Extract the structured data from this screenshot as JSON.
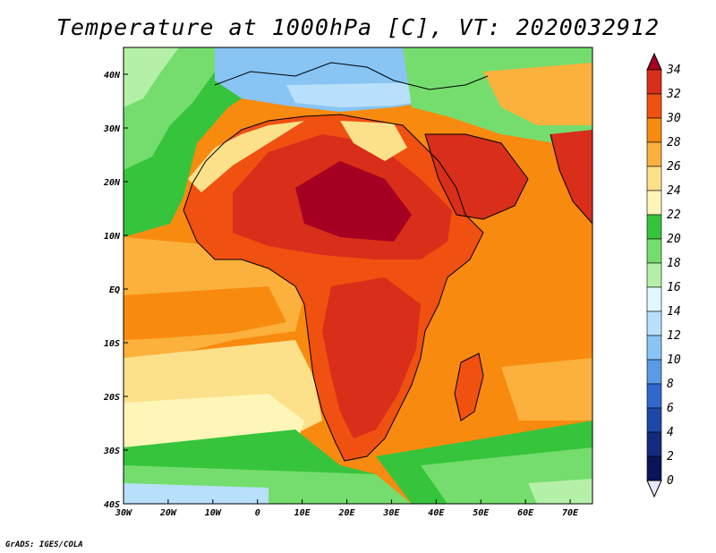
{
  "title": "Temperature at 1000hPa [C], VT: 2020032912",
  "credit": "GrADS: IGES/COLA",
  "map": {
    "variable": "Temperature at 1000hPa",
    "units": "C",
    "valid_time": "2020032912",
    "lon_range": [
      -30,
      75
    ],
    "lat_range": [
      -40,
      45
    ],
    "lon_ticks": [
      "30W",
      "20W",
      "10W",
      "0",
      "10E",
      "20E",
      "30E",
      "40E",
      "50E",
      "60E",
      "70E"
    ],
    "lat_ticks": [
      "40N",
      "30N",
      "20N",
      "10N",
      "EQ",
      "10S",
      "20S",
      "30S",
      "40S"
    ]
  },
  "colorbar": {
    "levels": [
      "34",
      "32",
      "30",
      "28",
      "26",
      "24",
      "22",
      "20",
      "18",
      "16",
      "14",
      "12",
      "10",
      "8",
      "6",
      "4",
      "2",
      "0"
    ],
    "colors": [
      "#a50021",
      "#d82e1a",
      "#f05010",
      "#f98a10",
      "#fbb13c",
      "#fde08a",
      "#fef5b8",
      "#36c43c",
      "#75dd6e",
      "#b5f0a8",
      "#e0f8ff",
      "#b8e0fb",
      "#88c4f4",
      "#5a9ae6",
      "#3068cc",
      "#1e48a8",
      "#142a7e",
      "#0a1458",
      "#e8e8ff"
    ]
  }
}
